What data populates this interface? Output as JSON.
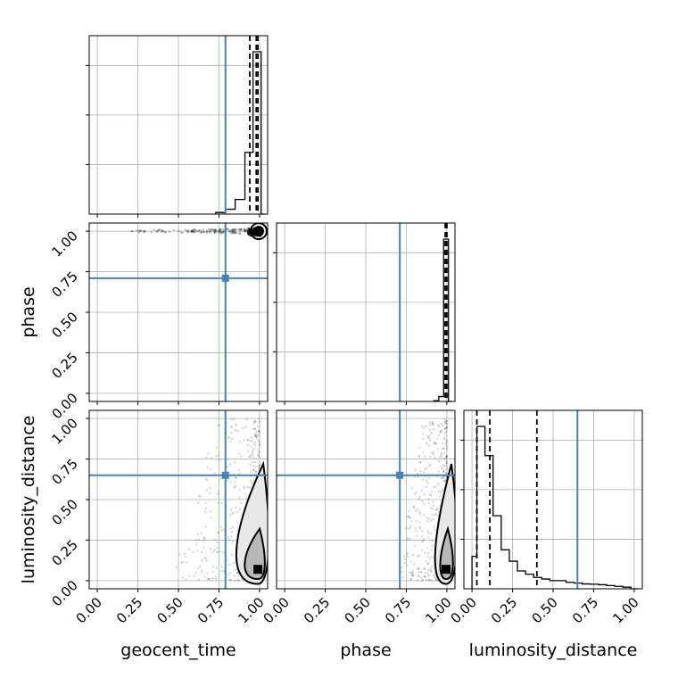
{
  "chart_data": {
    "type": "corner",
    "parameters": [
      "geocent_time",
      "phase",
      "luminosity_distance"
    ],
    "axis_labels": {
      "x": [
        "geocent_time",
        "phase",
        "luminosity_distance"
      ],
      "y": [
        "phase",
        "luminosity_distance"
      ]
    },
    "tick_labels": [
      "0.00",
      "0.25",
      "0.50",
      "0.75",
      "1.00"
    ],
    "range": [
      -0.05,
      1.05
    ],
    "grid": true,
    "truth_color": "#4682b4",
    "truths": {
      "geocent_time": 0.79,
      "phase": 0.71,
      "luminosity_distance": 0.65
    },
    "quantiles": {
      "geocent_time": [
        0.94,
        0.98,
        0.99
      ],
      "phase": [
        0.99,
        0.995,
        1.0
      ],
      "luminosity_distance": [
        0.03,
        0.11,
        0.4
      ]
    },
    "histograms": [
      {
        "parameter": "geocent_time",
        "bin_edges": [
          0.73,
          0.79,
          0.85,
          0.91,
          0.96,
          1.01,
          1.03
        ],
        "counts": [
          0.01,
          0.03,
          0.09,
          0.38,
          1.0,
          0.0
        ]
      },
      {
        "parameter": "phase",
        "bin_edges": [
          0.92,
          0.95,
          0.98,
          1.01,
          1.03
        ],
        "counts": [
          0.005,
          0.03,
          1.0,
          0.0
        ]
      },
      {
        "parameter": "luminosity_distance",
        "bin_edges": [
          0.0,
          0.03,
          0.08,
          0.13,
          0.18,
          0.23,
          0.28,
          0.33,
          0.38,
          0.43,
          0.48,
          0.53,
          0.58,
          0.63,
          0.68,
          0.73,
          0.78,
          0.83,
          0.88,
          0.93,
          0.98,
          1.03
        ],
        "counts": [
          0.2,
          1.0,
          0.82,
          0.45,
          0.24,
          0.17,
          0.11,
          0.09,
          0.07,
          0.06,
          0.05,
          0.05,
          0.04,
          0.035,
          0.03,
          0.028,
          0.025,
          0.02,
          0.015,
          0.01,
          0.0
        ]
      }
    ],
    "scatter_panels": [
      {
        "x": "geocent_time",
        "y": "phase",
        "mode": "point",
        "center": [
          0.995,
          1.0
        ]
      },
      {
        "x": "geocent_time",
        "y": "luminosity_distance",
        "mode": "column",
        "center": [
          0.99,
          0.07
        ]
      },
      {
        "x": "phase",
        "y": "luminosity_distance",
        "mode": "column",
        "center": [
          0.995,
          0.07
        ]
      }
    ]
  }
}
